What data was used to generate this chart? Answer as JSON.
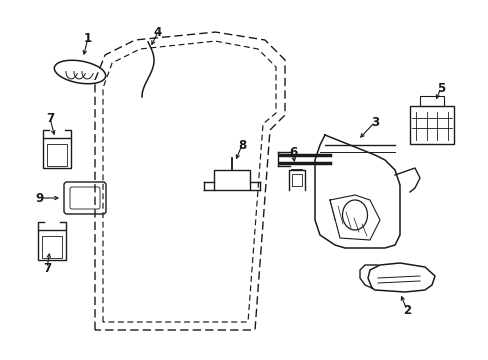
{
  "bg_color": "#ffffff",
  "line_color": "#1a1a1a",
  "fig_width": 4.89,
  "fig_height": 3.6,
  "dpi": 100,
  "lw": 1.0
}
